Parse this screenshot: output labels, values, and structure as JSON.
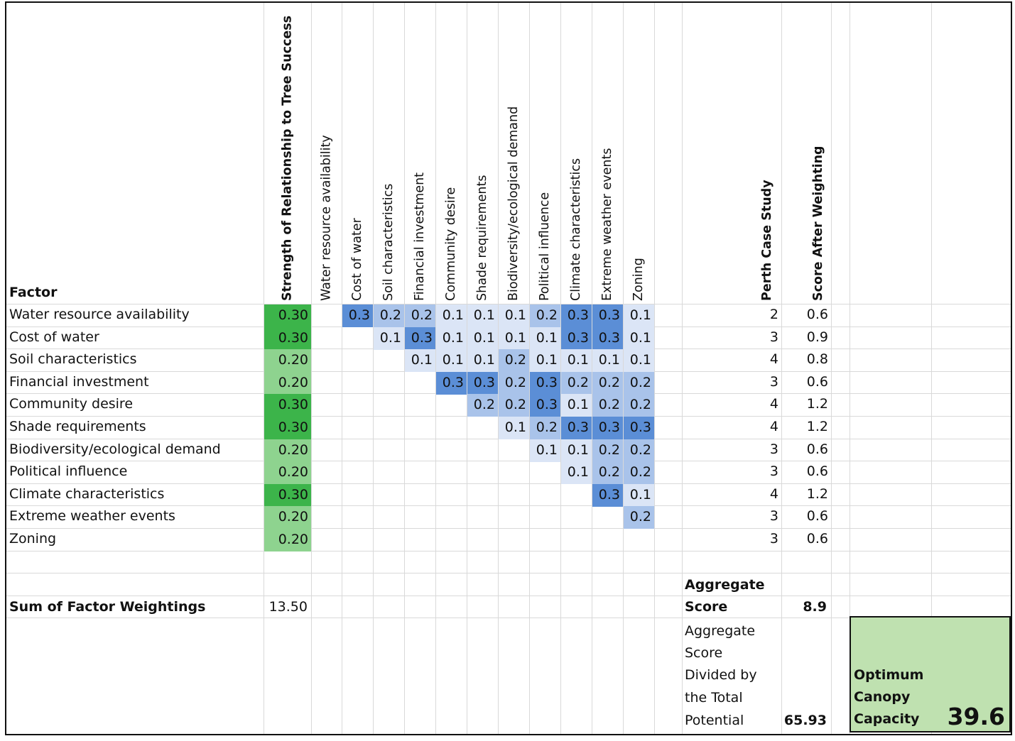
{
  "header": {
    "factor_label": "Factor"
  },
  "columns": {
    "strength": "Strength of Relationship to Tree Success",
    "factors": [
      "Water resource availability",
      "Cost of water",
      "Soil characteristics",
      "Financial investment",
      "Community desire",
      "Shade requirements",
      "Biodiversity/ecological demand",
      "Political influence",
      "Climate characteristics",
      "Extreme weather events",
      "Zoning"
    ],
    "perth": "Perth Case Study",
    "after": "Score After Weighting"
  },
  "rows": [
    {
      "factor": "Water resource availability",
      "strength": "0.30",
      "perth": "2",
      "after": "0.6"
    },
    {
      "factor": "Cost of water",
      "strength": "0.30",
      "perth": "3",
      "after": "0.9"
    },
    {
      "factor": "Soil characteristics",
      "strength": "0.20",
      "perth": "4",
      "after": "0.8"
    },
    {
      "factor": "Financial investment",
      "strength": "0.20",
      "perth": "3",
      "after": "0.6"
    },
    {
      "factor": "Community desire",
      "strength": "0.30",
      "perth": "4",
      "after": "1.2"
    },
    {
      "factor": "Shade requirements",
      "strength": "0.30",
      "perth": "4",
      "after": "1.2"
    },
    {
      "factor": "Biodiversity/ecological demand",
      "strength": "0.20",
      "perth": "3",
      "after": "0.6"
    },
    {
      "factor": "Political influence",
      "strength": "0.20",
      "perth": "3",
      "after": "0.6"
    },
    {
      "factor": "Climate characteristics",
      "strength": "0.30",
      "perth": "4",
      "after": "1.2"
    },
    {
      "factor": "Extreme weather events",
      "strength": "0.20",
      "perth": "3",
      "after": "0.6"
    },
    {
      "factor": "Zoning",
      "strength": "0.20",
      "perth": "3",
      "after": "0.6"
    }
  ],
  "matrix": [
    [
      "",
      "0.3",
      "0.2",
      "0.2",
      "0.1",
      "0.1",
      "0.1",
      "0.2",
      "0.3",
      "0.3",
      "0.1"
    ],
    [
      "",
      "",
      "0.1",
      "0.3",
      "0.1",
      "0.1",
      "0.1",
      "0.1",
      "0.3",
      "0.3",
      "0.1"
    ],
    [
      "",
      "",
      "",
      "0.1",
      "0.1",
      "0.1",
      "0.2",
      "0.1",
      "0.1",
      "0.1",
      "0.1"
    ],
    [
      "",
      "",
      "",
      "",
      "0.3",
      "0.3",
      "0.2",
      "0.3",
      "0.2",
      "0.2",
      "0.2"
    ],
    [
      "",
      "",
      "",
      "",
      "",
      "0.2",
      "0.2",
      "0.3",
      "0.1",
      "0.2",
      "0.2"
    ],
    [
      "",
      "",
      "",
      "",
      "",
      "",
      "0.1",
      "0.2",
      "0.3",
      "0.3",
      "0.3"
    ],
    [
      "",
      "",
      "",
      "",
      "",
      "",
      "",
      "0.1",
      "0.1",
      "0.2",
      "0.2"
    ],
    [
      "",
      "",
      "",
      "",
      "",
      "",
      "",
      "",
      "0.1",
      "0.2",
      "0.2"
    ],
    [
      "",
      "",
      "",
      "",
      "",
      "",
      "",
      "",
      "",
      "0.3",
      "0.1"
    ],
    [
      "",
      "",
      "",
      "",
      "",
      "",
      "",
      "",
      "",
      "",
      "0.2"
    ],
    [
      "",
      "",
      "",
      "",
      "",
      "",
      "",
      "",
      "",
      "",
      ""
    ]
  ],
  "colors": {
    "strength_high": "#3cb44a",
    "strength_mid": "#8ed38f",
    "matrix_0.3": "#5b8ed6",
    "matrix_0.2": "#a9c3ea",
    "matrix_0.1": "#dbe5f6",
    "optimum_fill": "#bfe1b0"
  },
  "summary": {
    "sum_label": "Sum of Factor Weightings",
    "sum_value": "13.50",
    "aggregate_label_1": "Aggregate",
    "aggregate_label_2": "Score",
    "aggregate_value": "8.9",
    "divided_lines": [
      "Aggregate",
      "Score",
      "Divided by",
      "the Total",
      "Potential"
    ],
    "divided_value": "65.93",
    "optimum_lines": [
      "Optimum",
      "Canopy",
      "Capacity"
    ],
    "optimum_value": "39.6"
  }
}
